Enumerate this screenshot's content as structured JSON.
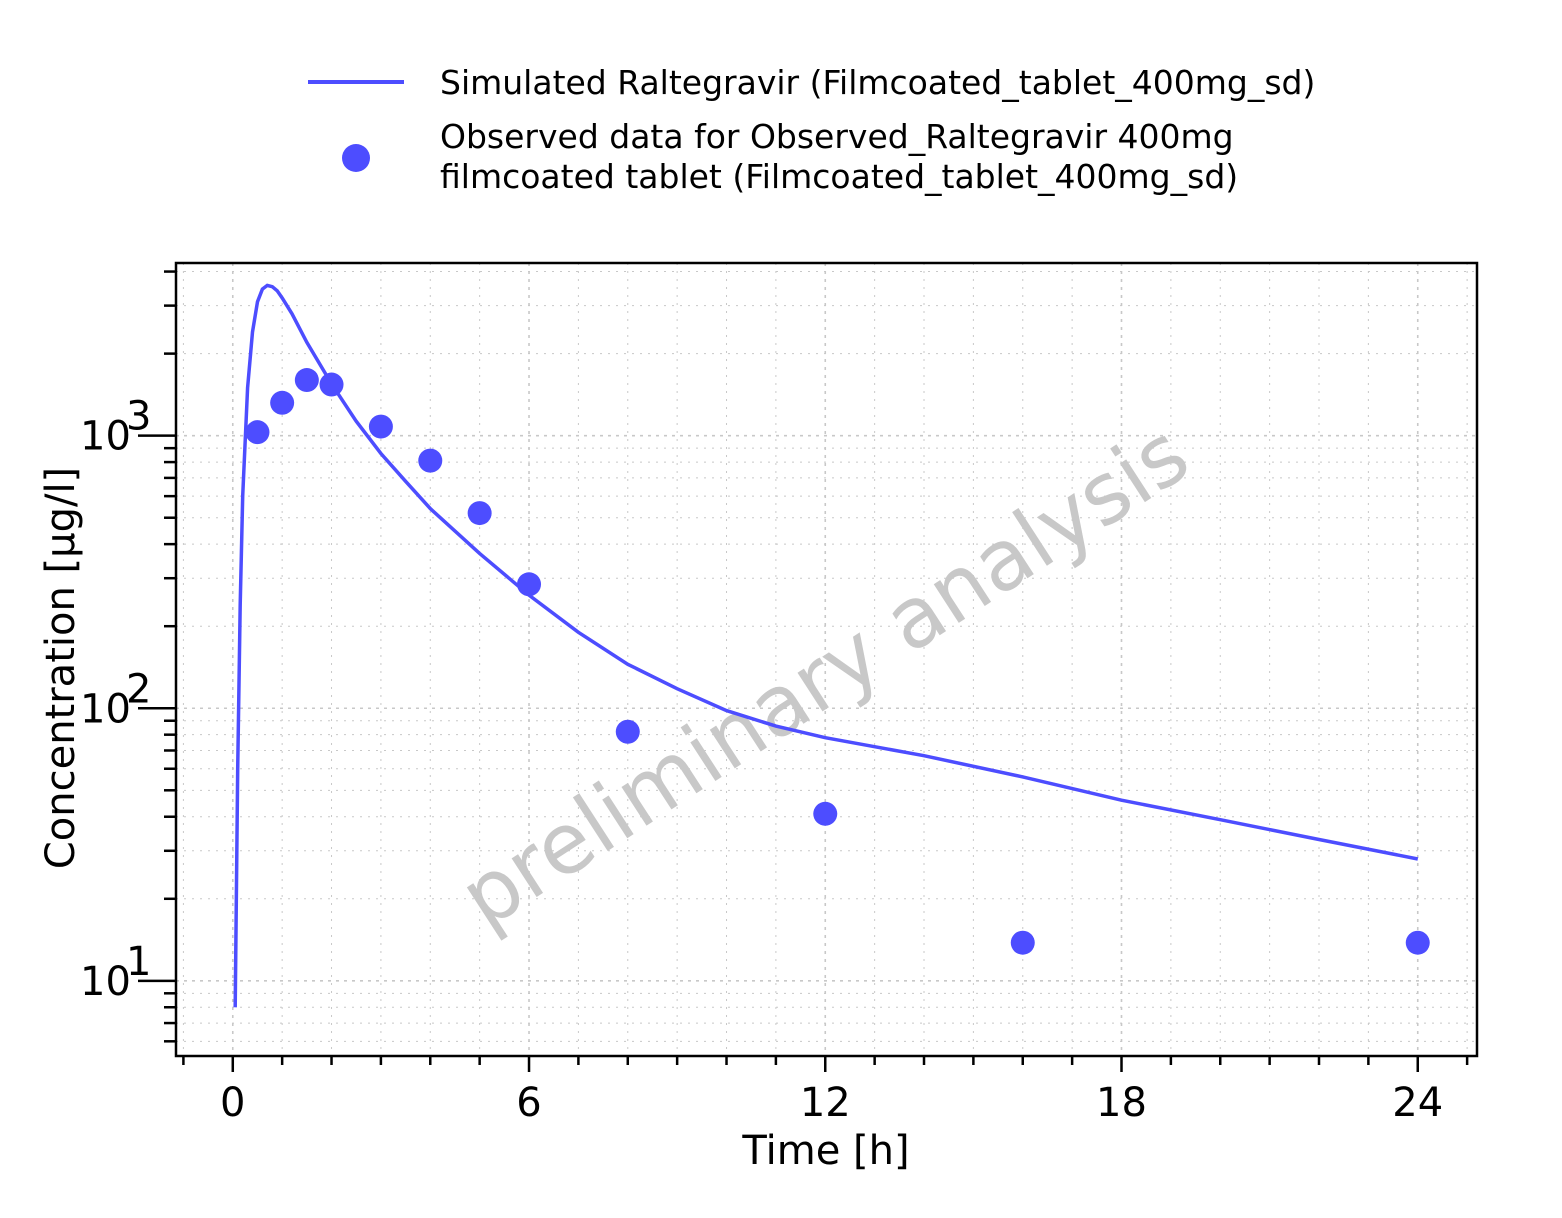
{
  "chart_data": {
    "type": "line",
    "xlabel": "Time [h]",
    "ylabel": "Concentration [µg/l]",
    "xlim": [
      -1.15,
      25.2
    ],
    "ylim": [
      5.3,
      4300
    ],
    "yscale": "log",
    "x_ticks": [
      0,
      6,
      12,
      18,
      24
    ],
    "x_tick_labels": [
      "0",
      "6",
      "12",
      "18",
      "24"
    ],
    "y_ticks": [
      10,
      100,
      1000
    ],
    "y_tick_labels": [
      {
        "base": "10",
        "exp": "1"
      },
      {
        "base": "10",
        "exp": "2"
      },
      {
        "base": "10",
        "exp": "3"
      }
    ],
    "grid": true,
    "legend_position": "top",
    "watermark": "preliminary analysis",
    "colors": {
      "series": "#4d4dff",
      "watermark": "#c8c8c8",
      "grid": "#c8c8c8"
    },
    "series": [
      {
        "name": "Simulated Raltegravir (Filmcoated_tablet_400mg_sd)",
        "kind": "line",
        "x": [
          0.05,
          0.1,
          0.15,
          0.2,
          0.3,
          0.4,
          0.5,
          0.6,
          0.7,
          0.8,
          0.9,
          1.0,
          1.2,
          1.5,
          2.0,
          2.5,
          3.0,
          3.5,
          4.0,
          5.0,
          6.0,
          7.0,
          8.0,
          9.0,
          10.0,
          11.0,
          12.0,
          14.0,
          16.0,
          18.0,
          20.0,
          22.0,
          24.0
        ],
        "y": [
          8,
          60,
          240,
          600,
          1500,
          2400,
          3100,
          3450,
          3560,
          3520,
          3400,
          3200,
          2800,
          2200,
          1550,
          1130,
          860,
          680,
          540,
          370,
          260,
          190,
          145,
          118,
          98,
          86,
          78,
          67,
          56,
          46,
          39,
          33,
          28
        ]
      },
      {
        "name_lines": [
          "Observed data for Observed_Raltegravir 400mg",
          "filmcoated tablet (Filmcoated_tablet_400mg_sd)"
        ],
        "kind": "scatter",
        "x": [
          0.5,
          1.0,
          1.5,
          2.0,
          3.0,
          4.0,
          5.0,
          6.0,
          8.0,
          12.0,
          16.0,
          24.0
        ],
        "y": [
          1030,
          1320,
          1600,
          1540,
          1080,
          810,
          520,
          285,
          82,
          41,
          13.8,
          13.8
        ]
      }
    ]
  }
}
